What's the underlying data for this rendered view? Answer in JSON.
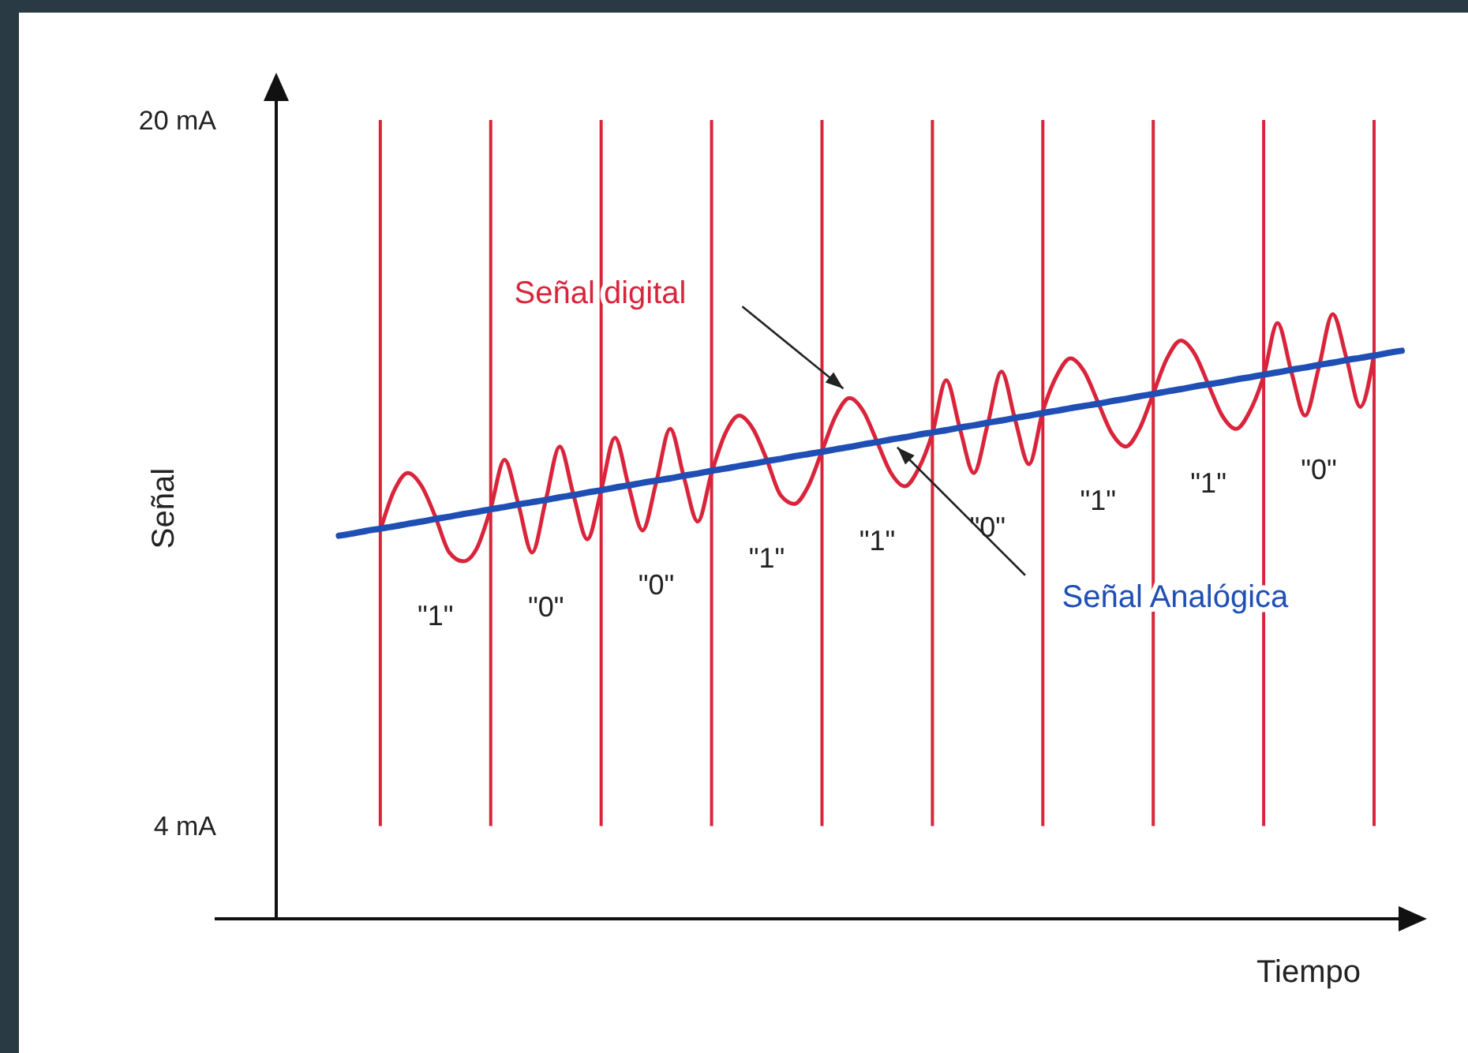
{
  "chart_data": {
    "type": "line",
    "xlabel": "Tiempo",
    "ylabel": "Señal",
    "categories": [
      null,
      null,
      null,
      null,
      null,
      null,
      null,
      null,
      null,
      null,
      null,
      null,
      null,
      null,
      null,
      null,
      null,
      null,
      null,
      null,
      null,
      null,
      null,
      null,
      null,
      null,
      null,
      null,
      null,
      null,
      null,
      null,
      null,
      null,
      null,
      null,
      null,
      null,
      null,
      null,
      null,
      null,
      null,
      null,
      null,
      null,
      null,
      null,
      null,
      null,
      null,
      null,
      null,
      null,
      null,
      null,
      null,
      null,
      null,
      null,
      null,
      null,
      null,
      null,
      null,
      null,
      null,
      null,
      null,
      null,
      null,
      null,
      null,
      null,
      null,
      null,
      null,
      null,
      null,
      null,
      null,
      null,
      null,
      null,
      null,
      null,
      null
    ],
    "ylim": [
      1.9,
      20.5
    ],
    "yticks": [
      {
        "value": 4,
        "label": "4 mA"
      },
      {
        "value": 20,
        "label": "20 mA"
      }
    ],
    "grid": "x",
    "marker": "none",
    "line_style": "solid",
    "series": [
      {
        "name": "Señal digital",
        "color": "#d9253b",
        "values": [
          null,
          null,
          null,
          null,
          null,
          null,
          null,
          null,
          null,
          null,
          null,
          null,
          10.7,
          11.6,
          12.0,
          11.7,
          11.0,
          10.2,
          10.0,
          10.3,
          11.2,
          12.3,
          11.3,
          10.2,
          11.4,
          12.6,
          11.5,
          10.5,
          11.6,
          12.8,
          11.7,
          10.7,
          11.8,
          13.0,
          11.9,
          10.9,
          12.0,
          12.9,
          13.3,
          13.0,
          12.3,
          11.5,
          11.3,
          11.7,
          12.5,
          13.3,
          13.7,
          13.4,
          12.7,
          12.0,
          11.7,
          12.1,
          12.9,
          14.1,
          13.0,
          12.0,
          13.1,
          14.3,
          13.2,
          12.2,
          13.4,
          14.2,
          14.6,
          14.3,
          13.6,
          12.9,
          12.6,
          13.0,
          13.8,
          14.6,
          15.0,
          14.7,
          14.0,
          13.3,
          13.0,
          13.4,
          14.2,
          15.4,
          14.3,
          13.3,
          14.4,
          15.6,
          14.6,
          13.5,
          14.7,
          null,
          null
        ]
      },
      {
        "name": "Señal Analógica",
        "color": "#1f4fb4",
        "values": [
          null,
          null,
          null,
          null,
          null,
          null,
          null,
          null,
          null,
          10.58,
          10.63,
          10.69,
          10.74,
          10.79,
          10.85,
          10.9,
          10.96,
          11.01,
          11.07,
          11.12,
          11.18,
          11.23,
          11.29,
          11.34,
          11.39,
          11.45,
          11.5,
          11.56,
          11.61,
          11.67,
          11.72,
          11.78,
          11.83,
          11.88,
          11.94,
          11.99,
          12.05,
          12.1,
          12.16,
          12.21,
          12.27,
          12.32,
          12.38,
          12.43,
          12.48,
          12.54,
          12.59,
          12.65,
          12.7,
          12.76,
          12.81,
          12.87,
          12.92,
          12.97,
          13.03,
          13.08,
          13.14,
          13.19,
          13.25,
          13.3,
          13.36,
          13.41,
          13.47,
          13.52,
          13.57,
          13.63,
          13.68,
          13.74,
          13.79,
          13.85,
          13.9,
          13.96,
          14.01,
          14.06,
          14.12,
          14.17,
          14.23,
          14.28,
          14.34,
          14.39,
          14.45,
          14.5,
          14.56,
          14.61,
          14.66,
          14.72,
          14.77
        ]
      }
    ],
    "annotations": [
      "\"1\"",
      "\"0\"",
      "\"0\"",
      "\"1\"",
      "\"1\"",
      "\"0\"",
      "\"1\"",
      "\"1\"",
      "\"0\""
    ]
  }
}
